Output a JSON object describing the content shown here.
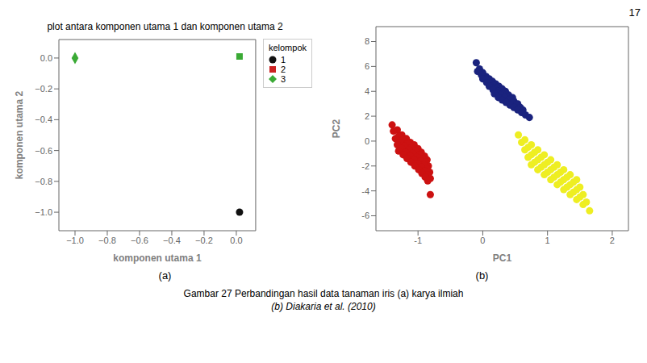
{
  "chart_data": [
    {
      "type": "scatter",
      "title": "plot antara komponen utama 1 dan komponen utama 2",
      "x_label": "komponen utama 1",
      "y_label": "komponen utama 2",
      "xlim": [
        -1.1,
        0.12
      ],
      "ylim": [
        -1.12,
        0.12
      ],
      "xticks": [
        {
          "value": -1.0,
          "label": "−1.0"
        },
        {
          "value": -0.8,
          "label": "−0.8"
        },
        {
          "value": -0.6,
          "label": "−0.6"
        },
        {
          "value": -0.4,
          "label": "−0.4"
        },
        {
          "value": -0.2,
          "label": "−0.2"
        },
        {
          "value": 0.0,
          "label": "0.0"
        }
      ],
      "yticks": [
        {
          "value": 0.0,
          "label": "0.0"
        },
        {
          "value": -0.2,
          "label": "−0.2"
        },
        {
          "value": -0.4,
          "label": "−0.4"
        },
        {
          "value": -0.6,
          "label": "−0.6"
        },
        {
          "value": -0.8,
          "label": "−0.8"
        },
        {
          "value": -1.0,
          "label": "−1.0"
        }
      ],
      "grid": false,
      "legend": "upper-right",
      "legend_title": "kelompok",
      "series": [
        {
          "name": "1",
          "color": "#111111",
          "marker": "circle",
          "x": [
            0.02
          ],
          "y": [
            -1.0
          ]
        },
        {
          "name": "2",
          "color": "#cc2222",
          "marker": "square",
          "x": [],
          "y": []
        },
        {
          "name": "3",
          "color": "#3aaa35",
          "marker": "diamond",
          "x": [
            -1.0
          ],
          "y": [
            0.0
          ]
        },
        {
          "color": "#3aaa35",
          "marker": "square",
          "x": [
            0.02
          ],
          "y": [
            0.01
          ]
        }
      ],
      "annotations": [
        "(a)"
      ]
    },
    {
      "type": "scatter",
      "x_label": "PC1",
      "y_label": "PC2",
      "xlim": [
        -1.65,
        2.25
      ],
      "ylim": [
        -7.2,
        9.2
      ],
      "xticks": [
        -1,
        0,
        1,
        2
      ],
      "yticks": [
        -6,
        -4,
        -2,
        0,
        2,
        4,
        6,
        8
      ],
      "grid": false,
      "series": [
        {
          "color": "#1a237e",
          "marker": "circle",
          "x": [
            -0.1,
            -0.05,
            0.0,
            0.05,
            0.1,
            0.15,
            0.2,
            0.25,
            0.3,
            0.35,
            -0.08,
            -0.02,
            0.04,
            0.1,
            0.16,
            0.22,
            0.28,
            0.34,
            0.4,
            0.46,
            0.0,
            0.06,
            0.12,
            0.18,
            0.24,
            0.3,
            0.36,
            0.42,
            0.48,
            0.54,
            0.1,
            0.16,
            0.22,
            0.28,
            0.34,
            0.4,
            0.46,
            0.52,
            0.58,
            0.62,
            0.18,
            0.24,
            0.3,
            0.36,
            0.42,
            0.48,
            0.54,
            0.6,
            0.66,
            0.72
          ],
          "y": [
            6.3,
            5.8,
            5.5,
            5.2,
            5.0,
            4.8,
            4.6,
            4.4,
            4.2,
            4.0,
            5.6,
            5.3,
            5.0,
            4.7,
            4.5,
            4.3,
            4.1,
            3.9,
            3.7,
            3.5,
            5.0,
            4.7,
            4.4,
            4.2,
            4.0,
            3.8,
            3.6,
            3.4,
            3.2,
            3.0,
            4.4,
            4.1,
            3.9,
            3.7,
            3.5,
            3.3,
            3.1,
            2.9,
            2.7,
            2.5,
            3.8,
            3.5,
            3.3,
            3.1,
            2.9,
            2.7,
            2.5,
            2.3,
            2.1,
            1.9
          ]
        },
        {
          "color": "#cc1111",
          "marker": "circle",
          "x": [
            -1.4,
            -1.32,
            -1.25,
            -1.18,
            -1.12,
            -1.06,
            -1.0,
            -0.95,
            -0.9,
            -0.86,
            -1.38,
            -1.3,
            -1.23,
            -1.16,
            -1.1,
            -1.04,
            -0.98,
            -0.93,
            -0.88,
            -0.84,
            -1.35,
            -1.28,
            -1.21,
            -1.14,
            -1.08,
            -1.02,
            -0.96,
            -0.91,
            -0.86,
            -0.82,
            -1.32,
            -1.25,
            -1.19,
            -1.12,
            -1.06,
            -1.0,
            -0.95,
            -0.9,
            -0.85,
            -0.81,
            -1.3,
            -1.23,
            -1.17,
            -1.11,
            -1.05,
            -0.99,
            -0.94,
            -0.89,
            -0.85,
            -0.81
          ],
          "y": [
            1.3,
            0.9,
            0.5,
            0.2,
            -0.1,
            -0.3,
            -0.6,
            -0.9,
            -1.2,
            -1.5,
            0.8,
            0.4,
            0.1,
            -0.2,
            -0.5,
            -0.8,
            -1.1,
            -1.4,
            -1.7,
            -2.0,
            0.2,
            -0.1,
            -0.4,
            -0.7,
            -1.0,
            -1.3,
            -1.6,
            -1.9,
            -2.2,
            -2.5,
            -0.3,
            -0.6,
            -0.9,
            -1.2,
            -1.5,
            -1.8,
            -2.1,
            -2.4,
            -2.7,
            -3.0,
            -0.8,
            -1.1,
            -1.4,
            -1.7,
            -2.0,
            -2.3,
            -2.6,
            -2.9,
            -3.2,
            -4.3
          ]
        },
        {
          "color": "#eeee22",
          "marker": "circle",
          "x": [
            0.55,
            0.65,
            0.75,
            0.85,
            0.95,
            1.05,
            1.15,
            1.25,
            1.35,
            1.45,
            0.6,
            0.7,
            0.8,
            0.9,
            1.0,
            1.1,
            1.2,
            1.3,
            1.4,
            1.5,
            0.65,
            0.75,
            0.85,
            0.95,
            1.05,
            1.15,
            1.25,
            1.35,
            1.45,
            1.55,
            0.7,
            0.8,
            0.9,
            1.0,
            1.1,
            1.2,
            1.3,
            1.4,
            1.5,
            1.6,
            0.75,
            0.85,
            0.95,
            1.05,
            1.15,
            1.25,
            1.35,
            1.45,
            1.55,
            1.65
          ],
          "y": [
            0.5,
            0.1,
            -0.3,
            -0.7,
            -1.1,
            -1.5,
            -1.9,
            -2.3,
            -2.7,
            -3.1,
            -0.1,
            -0.5,
            -0.9,
            -1.3,
            -1.7,
            -2.1,
            -2.5,
            -2.9,
            -3.3,
            -3.7,
            -0.7,
            -1.1,
            -1.5,
            -1.9,
            -2.3,
            -2.7,
            -3.1,
            -3.5,
            -3.9,
            -4.3,
            -1.3,
            -1.7,
            -2.1,
            -2.5,
            -2.9,
            -3.3,
            -3.7,
            -4.1,
            -4.5,
            -4.9,
            -1.9,
            -2.3,
            -2.7,
            -3.1,
            -3.5,
            -3.9,
            -4.3,
            -4.7,
            -5.1,
            -5.6
          ]
        }
      ],
      "annotations": [
        "(b)"
      ]
    }
  ],
  "annotations": [
    "17",
    "Gambar 27  Perbandingan hasil data tanaman iris (a) karya ilmiah",
    "(b) Diakaria et al. (2010)"
  ]
}
